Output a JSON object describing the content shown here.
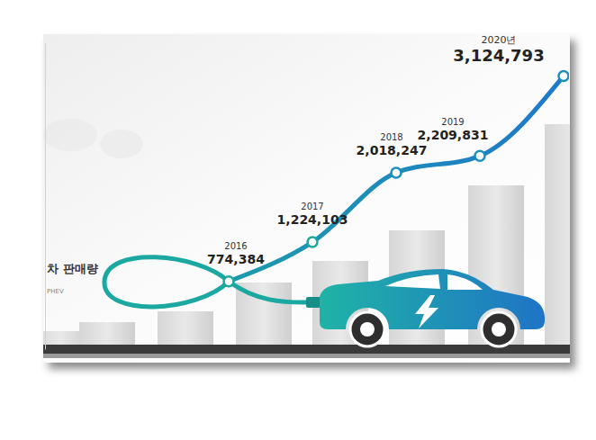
{
  "chart_data": {
    "type": "line",
    "title": "차 판매량",
    "subtitle": "PHEV",
    "categories": [
      "2016",
      "2017",
      "2018",
      "2019",
      "2020년"
    ],
    "values": [
      774384,
      1224103,
      2018247,
      2209831,
      3124793
    ],
    "value_labels": [
      "774,384",
      "1,224,103",
      "2,018,247",
      "2,209,831",
      "3,124,793"
    ],
    "data_labels": true,
    "ylim": [
      0,
      3500000
    ],
    "tick_labels": false,
    "grid": false,
    "color": "#1ba8a0",
    "marker": "circle"
  }
}
